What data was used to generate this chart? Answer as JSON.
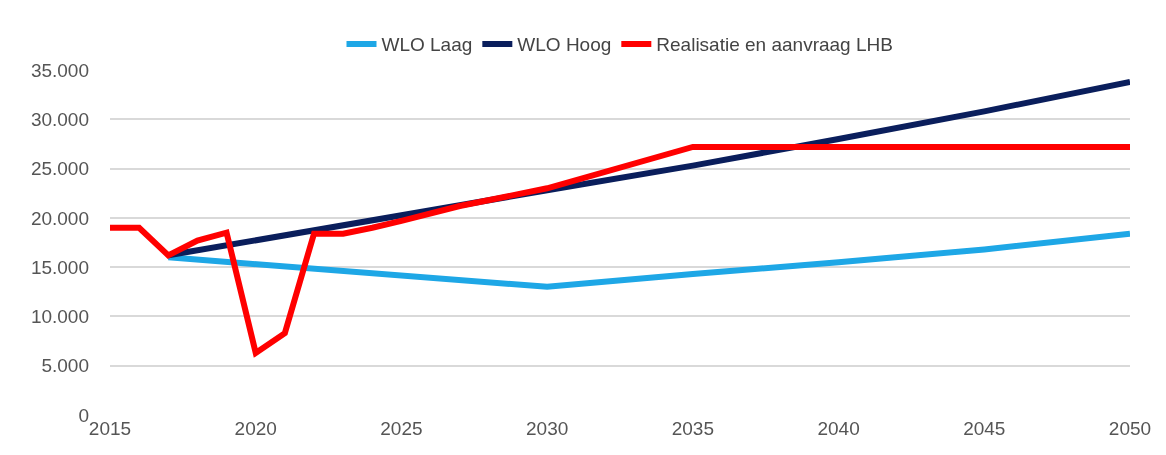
{
  "chart_data": {
    "type": "line",
    "xlim": [
      2015,
      2050
    ],
    "xticks": [
      2015,
      2020,
      2025,
      2030,
      2035,
      2040,
      2045,
      2050
    ],
    "ylim": [
      0,
      35000
    ],
    "yticks": [
      {
        "value": 0,
        "label": "0"
      },
      {
        "value": 5000,
        "label": "5.000"
      },
      {
        "value": 10000,
        "label": "10.000"
      },
      {
        "value": 15000,
        "label": "15.000"
      },
      {
        "value": 20000,
        "label": "20.000"
      },
      {
        "value": 25000,
        "label": "25.000"
      },
      {
        "value": 30000,
        "label": "30.000"
      },
      {
        "value": 35000,
        "label": "35.000"
      }
    ],
    "grid": "y",
    "legend": "top",
    "line_style": "solid",
    "series": [
      {
        "name": "WLO Laag",
        "color": "#1ea7e6",
        "x": [
          2017,
          2030,
          2035,
          2040,
          2045,
          2050
        ],
        "values": [
          16000,
          13000,
          14300,
          15500,
          16800,
          18400
        ]
      },
      {
        "name": "WLO Hoog",
        "color": "#0a1e5c",
        "x": [
          2017,
          2030,
          2035,
          2040,
          2045,
          2050
        ],
        "values": [
          16200,
          22800,
          25300,
          28000,
          30800,
          33800
        ]
      },
      {
        "name": "Realisatie en aanvraag LHB",
        "color": "#ff0000",
        "x": [
          2015,
          2016,
          2017,
          2018,
          2019,
          2020,
          2021,
          2022,
          2023,
          2024,
          2025,
          2027,
          2030,
          2035,
          2040,
          2050
        ],
        "values": [
          19000,
          19000,
          16200,
          17700,
          18500,
          6300,
          8300,
          18400,
          18400,
          19000,
          19700,
          21200,
          23000,
          27200,
          27200,
          27200
        ]
      }
    ]
  }
}
